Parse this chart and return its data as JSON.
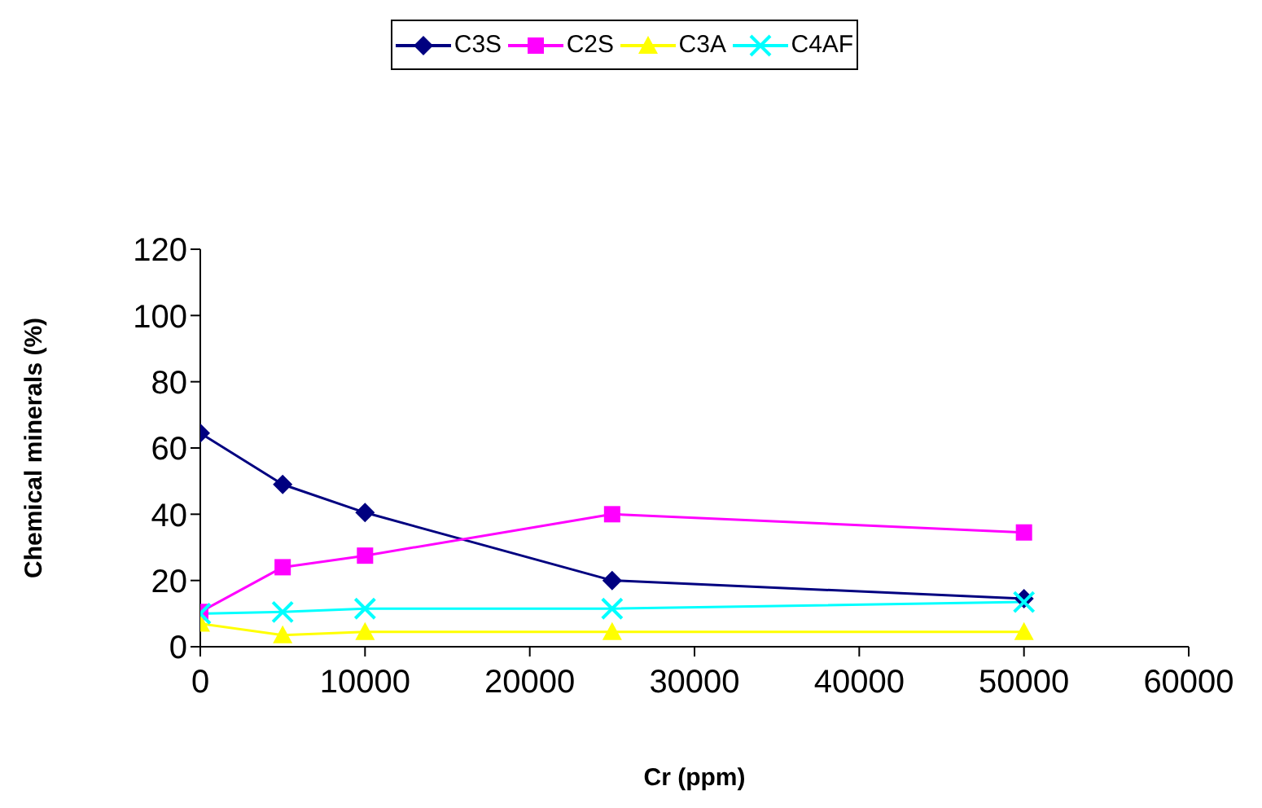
{
  "chart_data": {
    "type": "line",
    "xlabel": "Cr (ppm)",
    "ylabel": "Chemical minerals (%)",
    "x": [
      0,
      5000,
      10000,
      25000,
      50000
    ],
    "series": [
      {
        "name": "C3S",
        "color": "#000080",
        "marker": "diamond",
        "values": [
          64.5,
          49,
          40.5,
          20,
          14.5
        ]
      },
      {
        "name": "C2S",
        "color": "#ff00ff",
        "marker": "square",
        "values": [
          10.5,
          24,
          27.5,
          40,
          34.5
        ]
      },
      {
        "name": "C3A",
        "color": "#ffff00",
        "marker": "triangle",
        "values": [
          7,
          3.5,
          4.5,
          4.5,
          4.5
        ]
      },
      {
        "name": "C4AF",
        "color": "#00ffff",
        "marker": "cross",
        "values": [
          10,
          10.5,
          11.5,
          11.5,
          13.5
        ]
      }
    ],
    "xlim": [
      0,
      60000
    ],
    "xticks": [
      0,
      10000,
      20000,
      30000,
      40000,
      50000,
      60000
    ],
    "ylim": [
      0,
      120
    ],
    "yticks": [
      0,
      20,
      40,
      60,
      80,
      100,
      120
    ],
    "grid": false,
    "legend": "top"
  }
}
